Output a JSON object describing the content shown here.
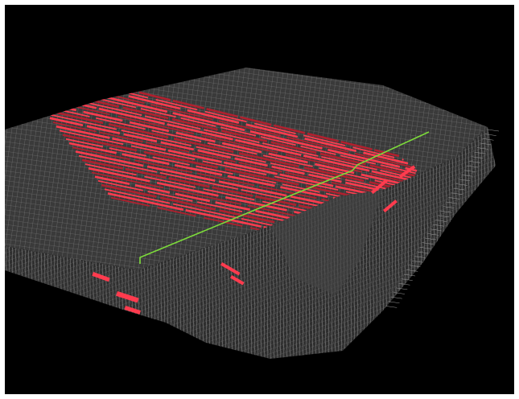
{
  "scene": {
    "description_visible_text": "",
    "colors": {
      "background": "#000000",
      "frame": "#ffffff",
      "mesh_fill": "#3a3a3a",
      "mesh_lines": "#8a8a8a",
      "mesh_lines_dark": "#555555",
      "highlight_strips": "#ff3b4e",
      "highlight_strips_dark": "#b0202e",
      "path_line": "#7ddc3a"
    },
    "icons": {
      "mesh": "wireframe-terrain-mesh",
      "strips": "highlighted-strip-segments",
      "path": "green-polyline-path"
    }
  }
}
